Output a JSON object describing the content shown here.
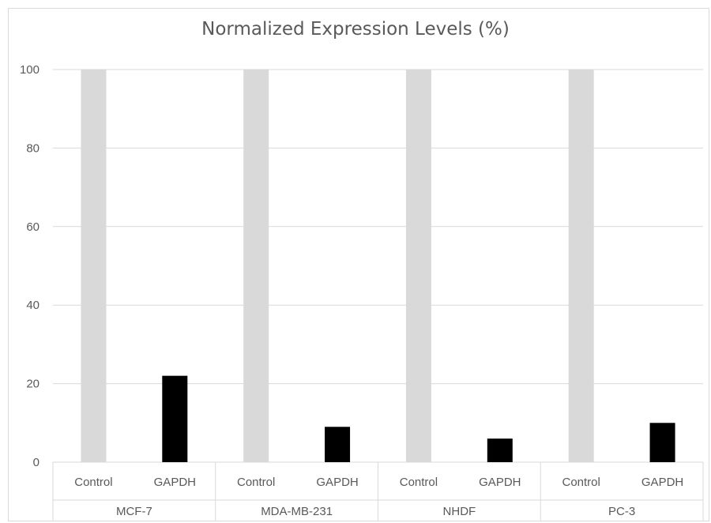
{
  "chart_data": {
    "type": "bar",
    "title": "Normalized Expression Levels (%)",
    "ylim": [
      0,
      100
    ],
    "yticks": [
      0,
      20,
      40,
      60,
      80,
      100
    ],
    "grid": true,
    "groups": [
      {
        "name": "MCF-7",
        "bars": [
          {
            "label": "Control",
            "value": 100
          },
          {
            "label": "GAPDH",
            "value": 22
          }
        ]
      },
      {
        "name": "MDA-MB-231",
        "bars": [
          {
            "label": "Control",
            "value": 100
          },
          {
            "label": "GAPDH",
            "value": 9
          }
        ]
      },
      {
        "name": "NHDF",
        "bars": [
          {
            "label": "Control",
            "value": 100
          },
          {
            "label": "GAPDH",
            "value": 6
          }
        ]
      },
      {
        "name": "PC-3",
        "bars": [
          {
            "label": "Control",
            "value": 100
          },
          {
            "label": "GAPDH",
            "value": 10
          }
        ]
      }
    ],
    "colors": {
      "Control": "#d9d9d9",
      "GAPDH": "#000000"
    }
  }
}
